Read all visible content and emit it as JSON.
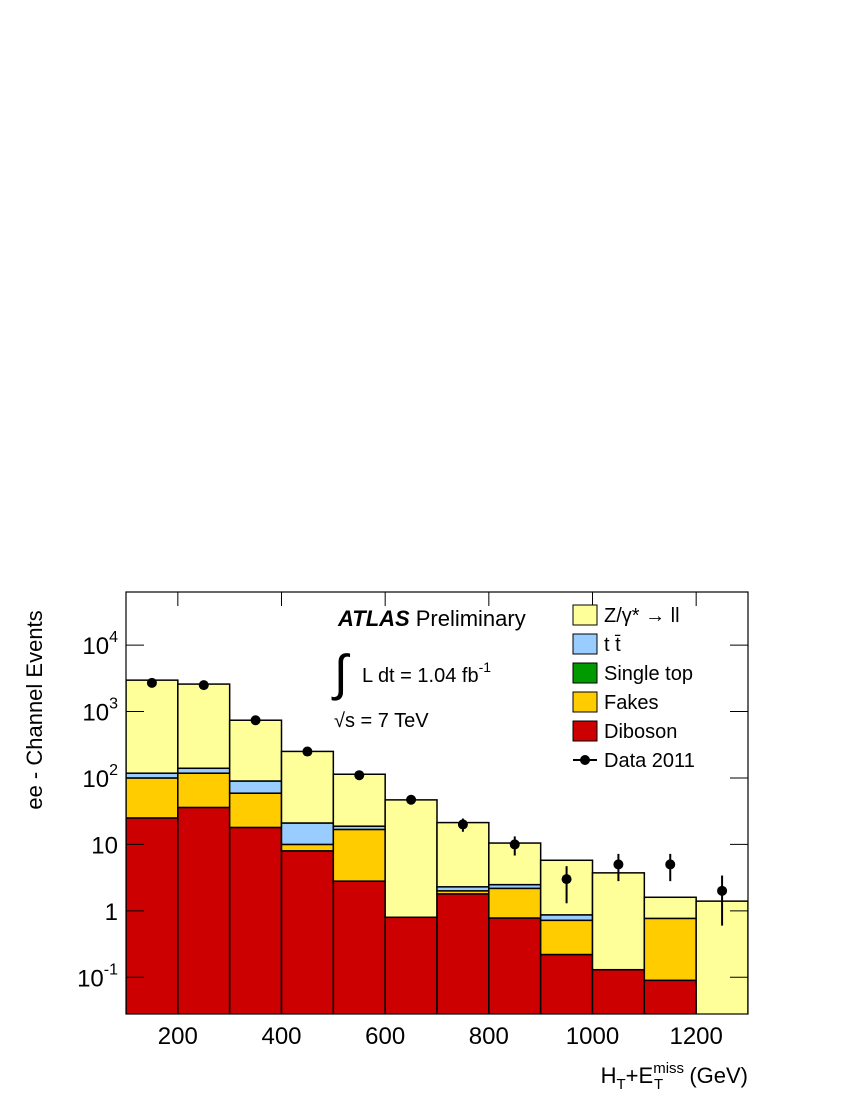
{
  "chart_data": {
    "type": "stacked_histogram",
    "y_label": "ee - Channel  Events",
    "x_label": {
      "main1": "H",
      "sub1": "T",
      "main2": "+E",
      "sup2": "miss",
      "sub2": "T",
      "unit": " (GeV)"
    },
    "annotations": {
      "atlas": "ATLAS",
      "preliminary": "Preliminary",
      "integral": "∫",
      "lumi": "L dt =  1.04  fb",
      "lumi_exp": "-1",
      "energy": "√s = 7 TeV"
    },
    "bins": [
      100,
      200,
      300,
      400,
      500,
      600,
      700,
      800,
      900,
      1000,
      1100,
      1200,
      1300
    ],
    "series": [
      {
        "name": "Z/γ* → ll",
        "color": "#ffff99",
        "values": [
          2850,
          2450,
          650,
          230,
          95,
          46,
          19,
          8,
          4.9,
          3.6,
          0.83,
          1.4
        ]
      },
      {
        "name": "t t̄",
        "color": "#99ccff",
        "values": [
          18,
          22,
          31,
          11,
          2,
          0,
          0.3,
          0.3,
          0.15,
          0,
          0,
          0
        ]
      },
      {
        "name": "Single top",
        "color": "#009900",
        "values": [
          0,
          0,
          0,
          0,
          0,
          0,
          0,
          0,
          0,
          0,
          0,
          0
        ]
      },
      {
        "name": "Fakes",
        "color": "#ffcc00",
        "values": [
          75,
          82,
          41,
          2,
          14,
          0,
          0.2,
          1.4,
          0.5,
          0,
          0.68,
          0
        ]
      },
      {
        "name": "Diboson",
        "color": "#cc0000",
        "values": [
          25,
          36,
          18,
          8,
          2.8,
          0.8,
          1.8,
          0.78,
          0.22,
          0.13,
          0.09,
          0
        ]
      }
    ],
    "data": {
      "name": "Data 2011",
      "x": [
        150,
        250,
        350,
        450,
        550,
        650,
        750,
        850,
        950,
        1050,
        1150,
        1250
      ],
      "values": [
        2700,
        2500,
        740,
        250,
        110,
        47,
        20,
        10,
        3,
        5,
        5,
        2
      ],
      "errors": [
        52,
        50,
        27,
        16,
        10.5,
        7,
        4.5,
        3.2,
        1.7,
        2.2,
        2.2,
        1.4
      ]
    },
    "xlim": [
      100,
      1300
    ],
    "xticks": [
      200,
      400,
      600,
      800,
      1000,
      1200
    ],
    "ylim": [
      0.028,
      63000
    ],
    "log_y": true,
    "yticks": [
      {
        "value": 0.1,
        "label": "10",
        "exp": "-1"
      },
      {
        "value": 1,
        "label": "1"
      },
      {
        "value": 10,
        "label": "10"
      },
      {
        "value": 100,
        "label": "10",
        "exp": "2"
      },
      {
        "value": 1000,
        "label": "10",
        "exp": "3"
      },
      {
        "value": 10000,
        "label": "10",
        "exp": "4"
      }
    ]
  }
}
